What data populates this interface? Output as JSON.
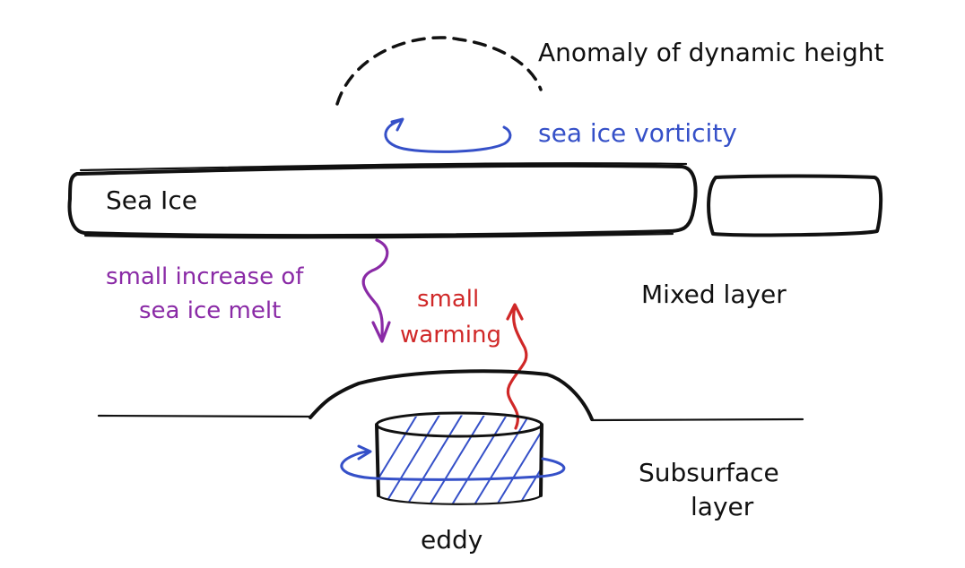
{
  "labels": {
    "anomaly": "Anomaly of dynamic height",
    "vorticity": "sea ice vorticity",
    "sea_ice": "Sea Ice",
    "melt_line1": "small increase of",
    "melt_line2": "sea ice melt",
    "warming_line1": "small",
    "warming_line2": "warming",
    "mixed_layer": "Mixed layer",
    "subsurface_line1": "Subsurface",
    "subsurface_line2": "layer",
    "eddy": "eddy"
  },
  "colors": {
    "ink": "#111111",
    "blue": "#3550c8",
    "purple": "#8a2aa6",
    "red": "#d02828"
  }
}
